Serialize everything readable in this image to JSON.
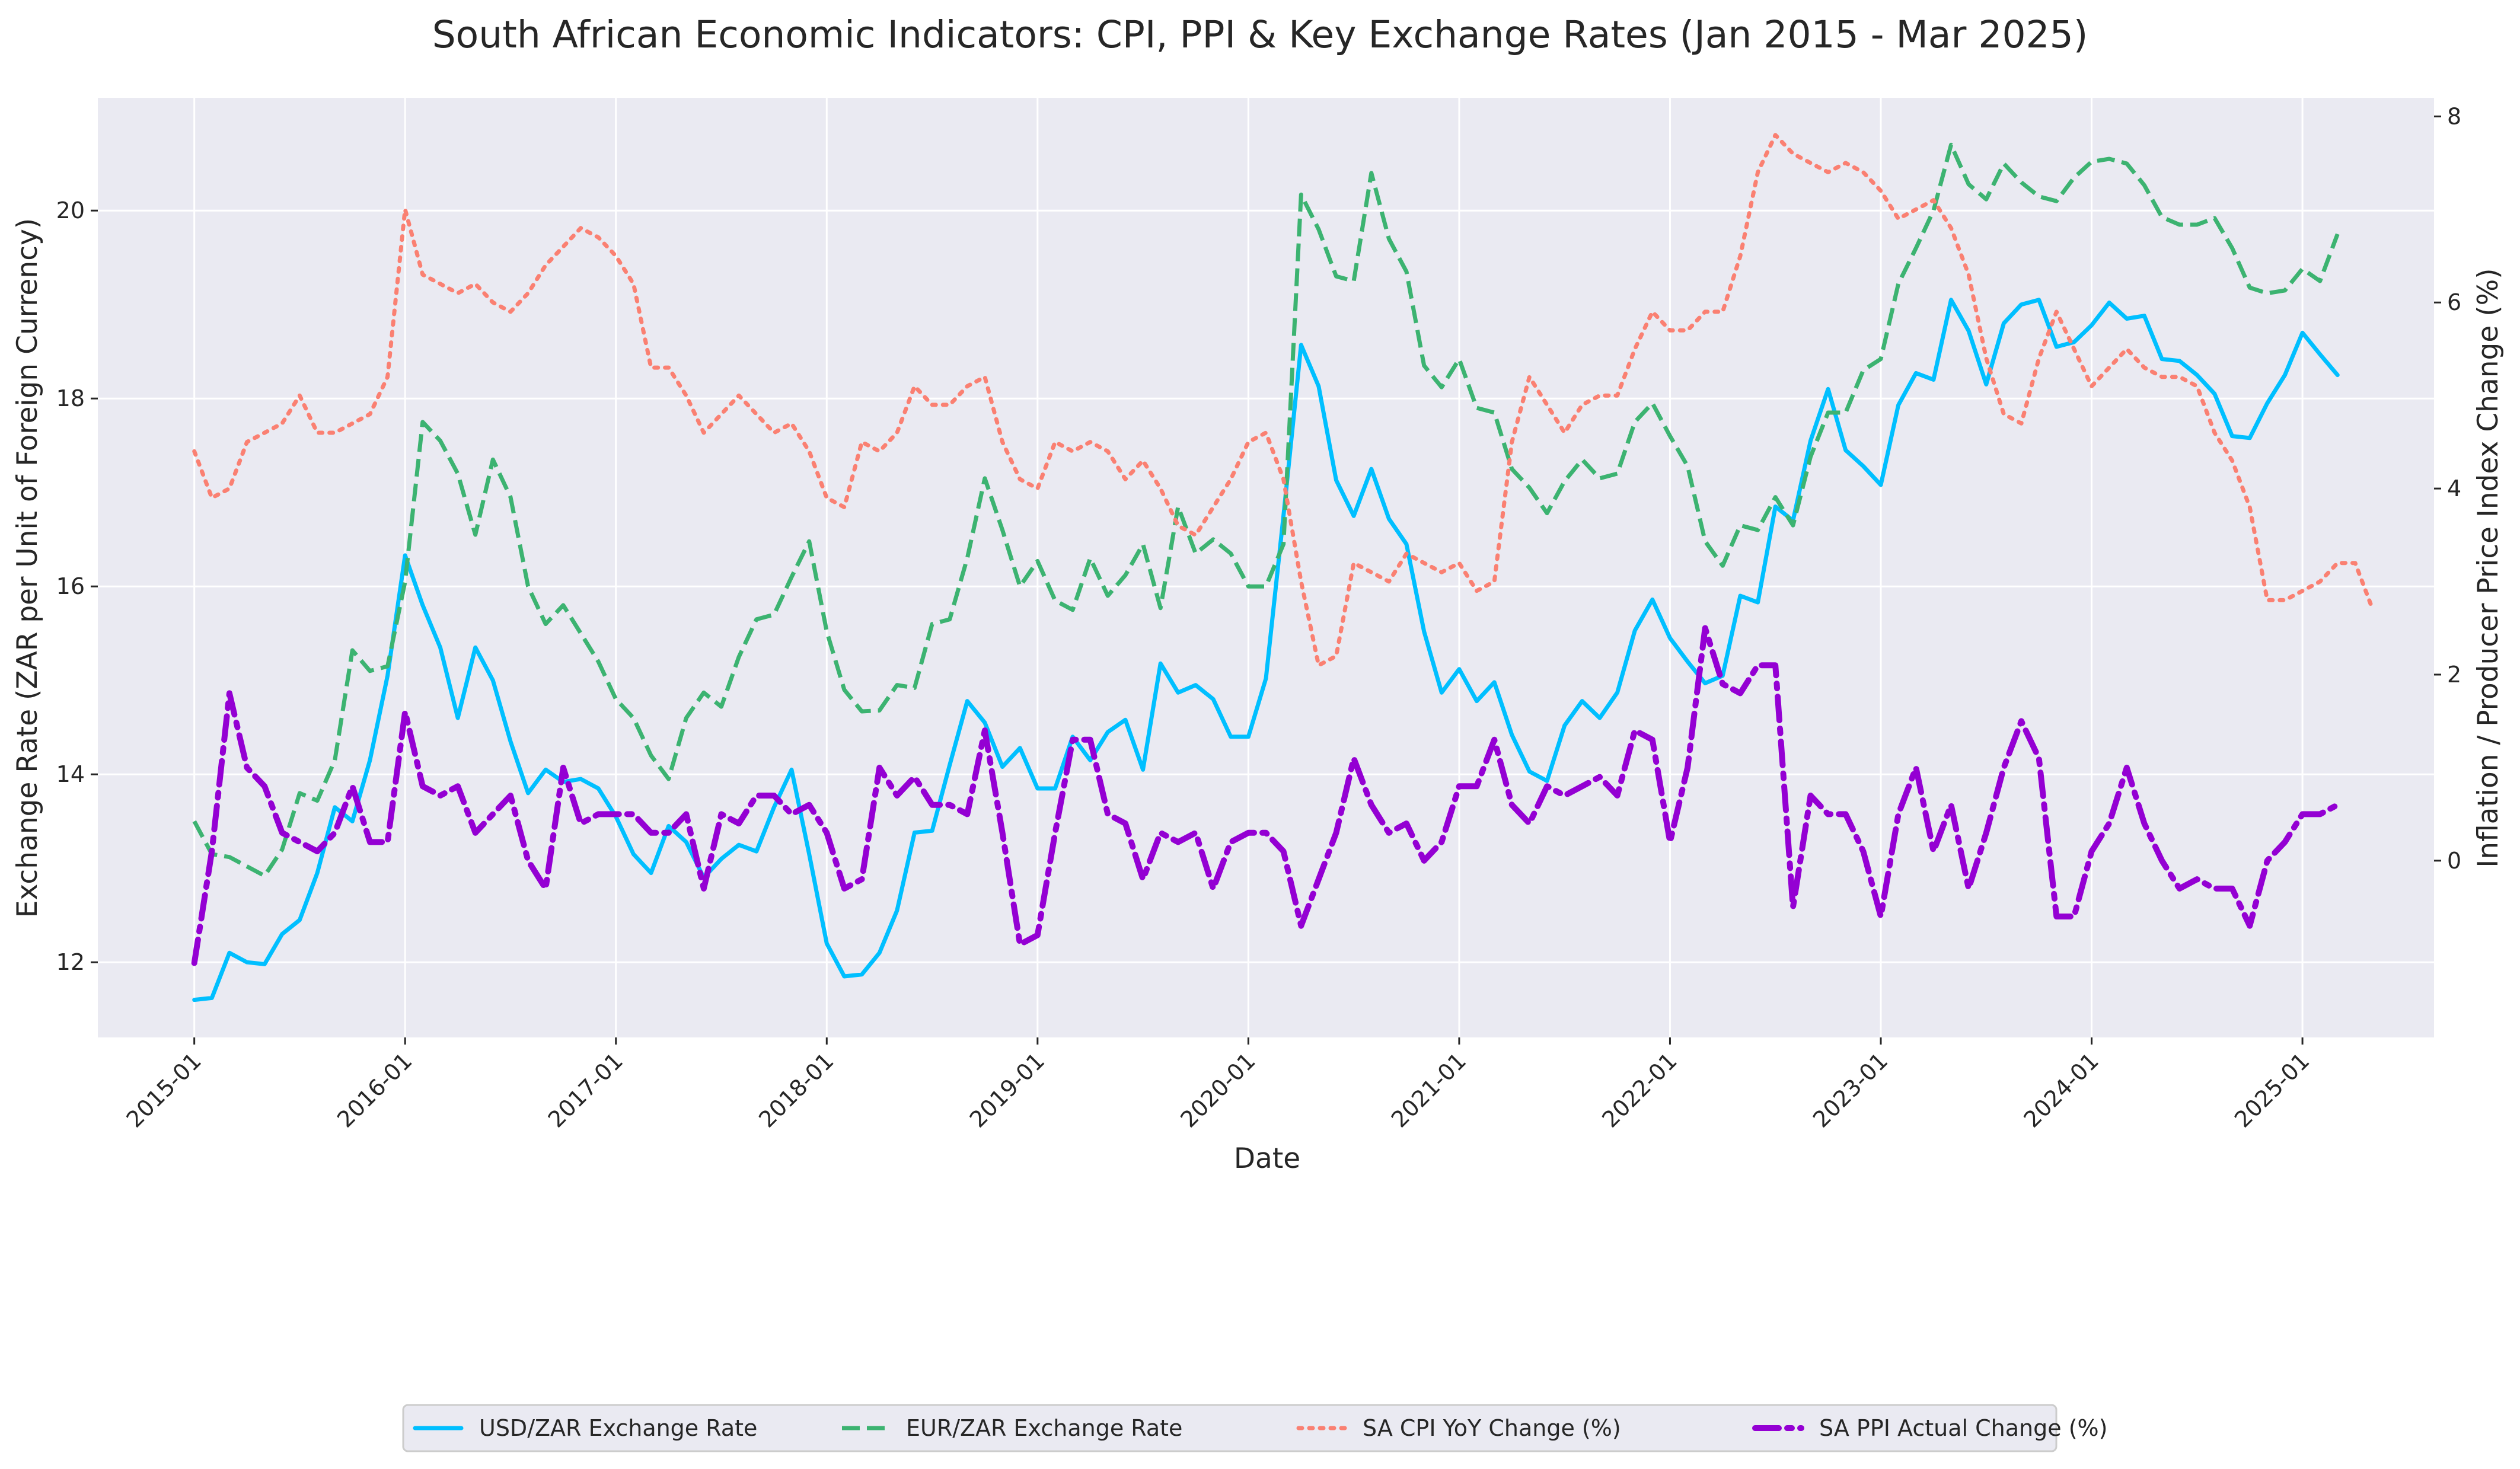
{
  "chart_data": {
    "type": "line",
    "title": "South African Economic Indicators: CPI, PPI & Key Exchange Rates (Jan 2015 - Mar 2025)",
    "xlabel": "Date",
    "ylabel_left": "Exchange Rate (ZAR per Unit of Foreign Currency)",
    "ylabel_right": "Inflation / Producer Price Index Change (%)",
    "ylim_left": [
      11.2,
      21.2
    ],
    "ylim_right": [
      -1.9,
      8.2
    ],
    "yticks_left": [
      12,
      14,
      16,
      18,
      20
    ],
    "yticks_right": [
      0,
      2,
      4,
      6,
      8
    ],
    "x_ticks": [
      "2015-01",
      "2016-01",
      "2017-01",
      "2018-01",
      "2019-01",
      "2020-01",
      "2021-01",
      "2022-01",
      "2023-01",
      "2024-01",
      "2025-01"
    ],
    "grid": true,
    "legend_position": "bottom-center",
    "legend_columns": 4,
    "x_start": "2015-01",
    "x_end": "2025-03",
    "series": [
      {
        "name": "USD/ZAR Exchange Rate",
        "axis": "left",
        "color": "#00bfff",
        "style": "solid",
        "values": [
          11.6,
          11.62,
          12.1,
          12.0,
          11.98,
          12.3,
          12.45,
          12.95,
          13.65,
          13.5,
          14.15,
          15.05,
          16.33,
          15.8,
          15.35,
          14.6,
          15.35,
          15.0,
          14.35,
          13.8,
          14.05,
          13.92,
          13.95,
          13.85,
          13.55,
          13.15,
          12.95,
          13.45,
          13.28,
          12.9,
          13.1,
          13.25,
          13.18,
          13.65,
          14.05,
          13.15,
          12.2,
          11.85,
          11.87,
          12.1,
          12.55,
          13.38,
          13.4,
          14.1,
          14.78,
          14.55,
          14.08,
          14.28,
          13.85,
          13.85,
          14.4,
          14.15,
          14.45,
          14.58,
          14.05,
          15.18,
          14.87,
          14.95,
          14.8,
          14.4,
          14.4,
          15.02,
          16.75,
          18.57,
          18.13,
          17.13,
          16.75,
          17.25,
          16.72,
          16.45,
          15.52,
          14.87,
          15.12,
          14.78,
          14.98,
          14.42,
          14.03,
          13.93,
          14.52,
          14.78,
          14.6,
          14.87,
          15.53,
          15.86,
          15.45,
          15.2,
          14.97,
          15.05,
          15.9,
          15.83,
          16.85,
          16.7,
          17.55,
          18.1,
          17.45,
          17.28,
          17.08,
          17.93,
          18.27,
          18.2,
          19.05,
          18.72,
          18.15,
          18.8,
          19.0,
          19.05,
          18.55,
          18.6,
          18.78,
          19.02,
          18.85,
          18.88,
          18.42,
          18.4,
          18.25,
          18.05,
          17.6,
          17.58,
          17.95,
          18.25,
          18.7,
          18.47,
          18.25
        ]
      },
      {
        "name": "EUR/ZAR Exchange Rate",
        "axis": "left",
        "color": "#3cb371",
        "style": "dashed",
        "values": [
          13.5,
          13.15,
          13.12,
          13.02,
          12.92,
          13.2,
          13.8,
          13.72,
          14.15,
          15.32,
          15.1,
          15.15,
          16.05,
          17.75,
          17.55,
          17.2,
          16.55,
          17.35,
          16.95,
          16.0,
          15.6,
          15.8,
          15.5,
          15.2,
          14.8,
          14.6,
          14.2,
          13.95,
          14.6,
          14.87,
          14.72,
          15.25,
          15.65,
          15.7,
          16.1,
          16.48,
          15.52,
          14.9,
          14.67,
          14.68,
          14.95,
          14.92,
          15.6,
          15.65,
          16.3,
          17.15,
          16.6,
          16.0,
          16.27,
          15.85,
          15.75,
          16.3,
          15.9,
          16.12,
          16.45,
          15.77,
          16.85,
          16.35,
          16.5,
          16.35,
          16.0,
          16.0,
          16.45,
          20.17,
          19.8,
          19.3,
          19.25,
          20.4,
          19.7,
          19.35,
          18.35,
          18.12,
          18.42,
          17.9,
          17.85,
          17.25,
          17.05,
          16.78,
          17.12,
          17.35,
          17.15,
          17.2,
          17.75,
          17.95,
          17.6,
          17.28,
          16.48,
          16.22,
          16.65,
          16.6,
          16.95,
          16.65,
          17.38,
          17.85,
          17.85,
          18.3,
          18.42,
          19.22,
          19.6,
          20.0,
          20.7,
          20.28,
          20.12,
          20.5,
          20.3,
          20.15,
          20.1,
          20.35,
          20.52,
          20.55,
          20.5,
          20.27,
          19.93,
          19.85,
          19.85,
          19.92,
          19.6,
          19.18,
          19.12,
          19.15,
          19.38,
          19.25,
          19.75
        ]
      },
      {
        "name": "SA CPI YoY Change (%)",
        "axis": "right",
        "color": "#fa8072",
        "style": "dotted",
        "values": [
          4.4,
          3.9,
          4.0,
          4.5,
          4.6,
          4.7,
          5.0,
          4.6,
          4.6,
          4.7,
          4.8,
          5.2,
          7.0,
          6.3,
          6.2,
          6.1,
          6.2,
          6.0,
          5.9,
          6.1,
          6.4,
          6.6,
          6.8,
          6.7,
          6.5,
          6.2,
          5.3,
          5.3,
          5.0,
          4.6,
          4.8,
          5.0,
          4.8,
          4.6,
          4.7,
          4.4,
          3.9,
          3.8,
          4.5,
          4.4,
          4.6,
          5.1,
          4.9,
          4.9,
          5.1,
          5.2,
          4.5,
          4.1,
          4.0,
          4.5,
          4.4,
          4.5,
          4.4,
          4.1,
          4.3,
          4.0,
          3.6,
          3.5,
          3.8,
          4.1,
          4.5,
          4.6,
          4.1,
          3.0,
          2.1,
          2.2,
          3.2,
          3.1,
          3.0,
          3.3,
          3.2,
          3.1,
          3.2,
          2.9,
          3.0,
          4.5,
          5.2,
          4.9,
          4.6,
          4.9,
          5.0,
          5.0,
          5.5,
          5.9,
          5.7,
          5.7,
          5.9,
          5.9,
          6.5,
          7.4,
          7.8,
          7.6,
          7.5,
          7.4,
          7.5,
          7.4,
          7.2,
          6.9,
          7.0,
          7.1,
          6.8,
          6.3,
          5.4,
          4.8,
          4.7,
          5.4,
          5.9,
          5.5,
          5.1,
          5.3,
          5.5,
          5.3,
          5.2,
          5.2,
          5.1,
          4.6,
          4.3,
          3.8,
          2.8,
          2.8,
          2.9,
          3.0,
          3.2,
          3.2,
          2.7
        ]
      },
      {
        "name": "SA PPI Actual Change (%)",
        "axis": "right",
        "color": "#9400d3",
        "style": "dashdot",
        "values": [
          -1.1,
          0.1,
          1.8,
          1.0,
          0.8,
          0.3,
          0.2,
          0.1,
          0.3,
          0.8,
          0.2,
          0.2,
          1.6,
          0.8,
          0.7,
          0.8,
          0.3,
          0.5,
          0.7,
          0.0,
          -0.3,
          1.0,
          0.4,
          0.5,
          0.5,
          0.5,
          0.3,
          0.3,
          0.5,
          -0.3,
          0.5,
          0.4,
          0.7,
          0.7,
          0.5,
          0.6,
          0.3,
          -0.3,
          -0.2,
          1.0,
          0.7,
          0.9,
          0.6,
          0.6,
          0.5,
          1.4,
          0.3,
          -0.9,
          -0.8,
          0.3,
          1.3,
          1.3,
          0.5,
          0.4,
          -0.2,
          0.3,
          0.2,
          0.3,
          -0.3,
          0.2,
          0.3,
          0.3,
          0.1,
          -0.7,
          -0.2,
          0.3,
          1.1,
          0.6,
          0.3,
          0.4,
          0.0,
          0.2,
          0.8,
          0.8,
          1.3,
          0.6,
          0.4,
          0.8,
          0.7,
          0.8,
          0.9,
          0.7,
          1.4,
          1.3,
          0.2,
          1.0,
          2.5,
          1.9,
          1.8,
          2.1,
          2.1,
          -0.5,
          0.7,
          0.5,
          0.5,
          0.1,
          -0.6,
          0.5,
          1.0,
          0.1,
          0.6,
          -0.3,
          0.3,
          1.0,
          1.5,
          1.1,
          -0.6,
          -0.6,
          0.1,
          0.4,
          1.0,
          0.4,
          0.0,
          -0.3,
          -0.2,
          -0.3,
          -0.3,
          -0.7,
          0.0,
          0.2,
          0.5,
          0.5,
          0.6
        ]
      }
    ]
  }
}
